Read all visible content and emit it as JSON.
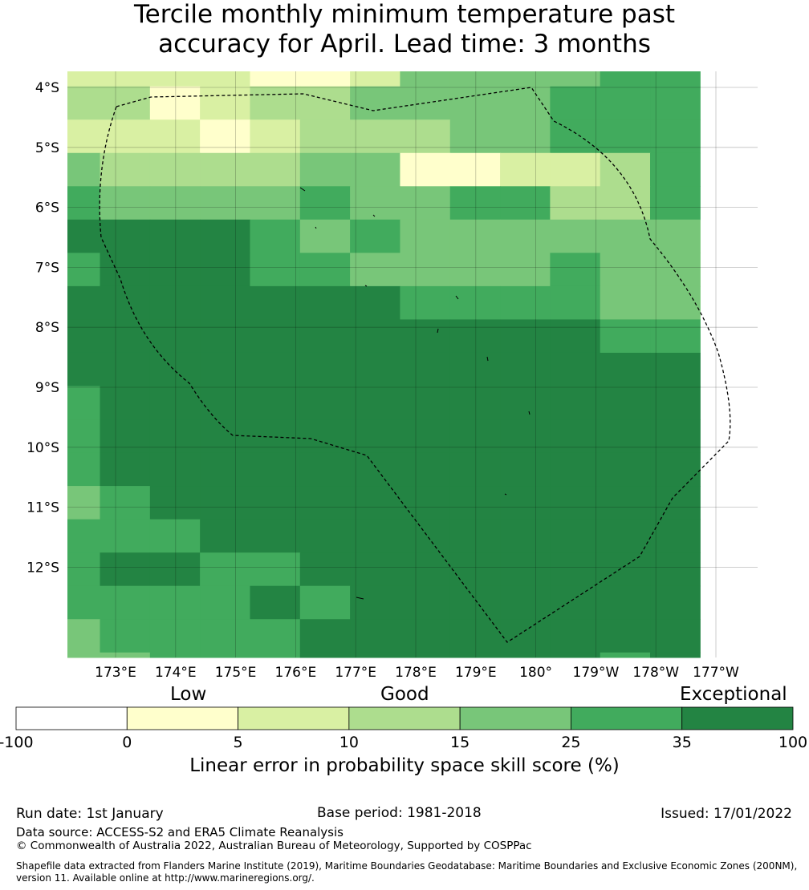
{
  "title": {
    "line1": "Tercile monthly minimum temperature past",
    "line2": "accuracy for April. Lead time: 3 months"
  },
  "map": {
    "lat_labels": [
      "4°S",
      "5°S",
      "6°S",
      "7°S",
      "8°S",
      "9°S",
      "10°S",
      "11°S",
      "12°S"
    ],
    "lon_labels": [
      "173°E",
      "174°E",
      "175°E",
      "176°E",
      "177°E",
      "178°E",
      "179°E",
      "180°",
      "179°W",
      "178°W",
      "177°W"
    ],
    "grid": [
      "2222112444455",
      "3312334444555",
      "2221233344555",
      "4333344112235",
      "5444454455335",
      "6666545444444",
      "5666554444544",
      "6666666555544",
      "6666666666655",
      "6666666666666",
      "5666666666666",
      "5666666666666",
      "5666666666666",
      "4566666666666",
      "5556666666666",
      "5665566666666",
      "5555656666666",
      "4555566666666",
      "4455566666656"
    ]
  },
  "legend": {
    "categories": [
      "Low",
      "Good",
      "Exceptional"
    ],
    "bins": [
      {
        "from": -100,
        "to": 0,
        "color": "#ffffff"
      },
      {
        "from": 0,
        "to": 5,
        "color": "#ffffcc"
      },
      {
        "from": 5,
        "to": 10,
        "color": "#d9f0a3"
      },
      {
        "from": 10,
        "to": 15,
        "color": "#addd8e"
      },
      {
        "from": 15,
        "to": 25,
        "color": "#78c679"
      },
      {
        "from": 25,
        "to": 35,
        "color": "#41ab5d"
      },
      {
        "from": 35,
        "to": 100,
        "color": "#238443"
      }
    ],
    "tick_labels": [
      "-100",
      "0",
      "5",
      "10",
      "15",
      "25",
      "35",
      "100"
    ],
    "colorbar_title": "Linear error in probability space skill score (%)"
  },
  "footer": {
    "run_date": "Run date: 1st January",
    "base_period": "Base period: 1981-2018",
    "issued": "Issued: 17/01/2022",
    "data_source": "Data source: ACCESS-S2 and ERA5 Climate Reanalysis",
    "copyright": "© Commonwealth of Australia 2022, Australian Bureau of Meteorology, Supported by COSPPac",
    "shapefile": "Shapefile data extracted from Flanders Marine Institute (2019), Maritime Boundaries Geodatabase: Maritime Boundaries and Exclusive Economic Zones (200NM), version 11. Available online at http://www.marineregions.org/."
  }
}
